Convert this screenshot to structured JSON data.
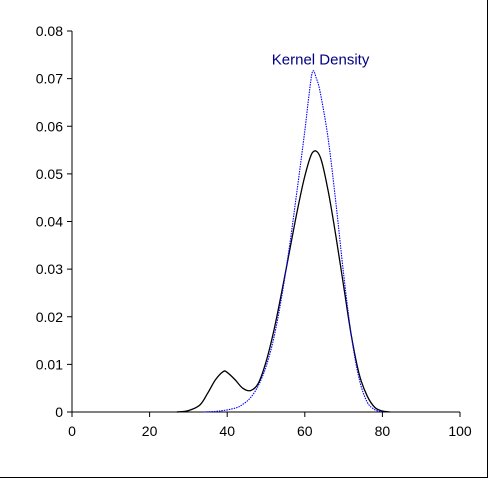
{
  "chart_data": {
    "type": "line",
    "title": "",
    "xlabel": "",
    "ylabel": "",
    "xlim": [
      0,
      100
    ],
    "ylim": [
      0,
      0.08
    ],
    "x_ticks": [
      0,
      20,
      40,
      60,
      80,
      100
    ],
    "y_ticks": [
      0,
      0.01,
      0.02,
      0.03,
      0.04,
      0.05,
      0.06,
      0.07,
      0.08
    ],
    "x_tick_labels": [
      "0",
      "20",
      "40",
      "60",
      "80",
      "100"
    ],
    "y_tick_labels": [
      "0",
      "0.01",
      "0.02",
      "0.03",
      "0.04",
      "0.05",
      "0.06",
      "0.07",
      "0.08"
    ],
    "grid": false,
    "annotation": {
      "text": "Kernel Density",
      "x": 62,
      "y": 0.0725,
      "color": "#000080"
    },
    "series": [
      {
        "color": "#000000",
        "style": "solid",
        "x": [
          27,
          30,
          33,
          35,
          37,
          39,
          40,
          42,
          44,
          46,
          48,
          50,
          52,
          54,
          56,
          58,
          60,
          62,
          64,
          66,
          68,
          70,
          72,
          74,
          76,
          78,
          80,
          82
        ],
        "y": [
          0,
          0.0003,
          0.0015,
          0.004,
          0.0068,
          0.0085,
          0.0083,
          0.0068,
          0.005,
          0.0045,
          0.006,
          0.0105,
          0.017,
          0.025,
          0.0335,
          0.042,
          0.0495,
          0.0545,
          0.0535,
          0.0465,
          0.037,
          0.0265,
          0.016,
          0.008,
          0.0035,
          0.001,
          0.0002,
          0
        ]
      },
      {
        "color": "#0000ff",
        "style": "dotted",
        "x": [
          34,
          38,
          42,
          44,
          46,
          48,
          50,
          52,
          54,
          56,
          58,
          60,
          61,
          62,
          63,
          64,
          66,
          68,
          70,
          72,
          74,
          76,
          78,
          80
        ],
        "y": [
          0,
          0.0002,
          0.0008,
          0.0016,
          0.003,
          0.0055,
          0.0095,
          0.0155,
          0.024,
          0.0345,
          0.0465,
          0.059,
          0.066,
          0.0715,
          0.07,
          0.067,
          0.0575,
          0.044,
          0.029,
          0.016,
          0.007,
          0.0022,
          0.0005,
          0
        ]
      }
    ]
  }
}
